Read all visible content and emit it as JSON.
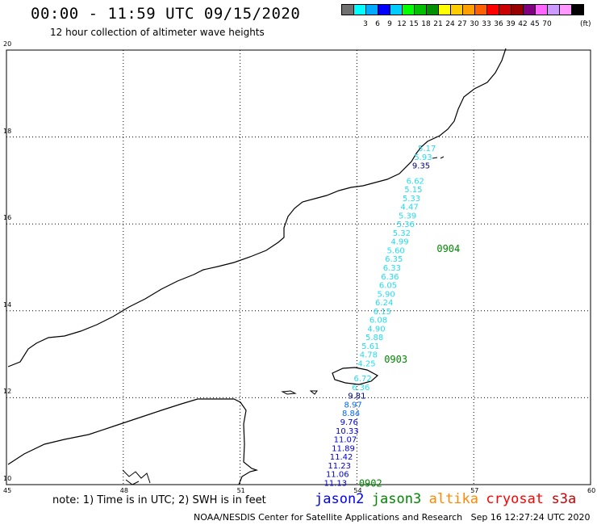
{
  "header": {
    "title": "00:00 - 11:59 UTC 09/15/2020",
    "subtitle": "12 hour collection of altimeter wave heights"
  },
  "legend": {
    "unit": "(ft)",
    "colors": [
      "#707070",
      "#00ffff",
      "#00aaff",
      "#0000ff",
      "#00ccff",
      "#00ff00",
      "#00c000",
      "#009000",
      "#ffff00",
      "#ffcc00",
      "#ffa000",
      "#ff6000",
      "#ff0000",
      "#cc0000",
      "#990000",
      "#800080",
      "#ff66ff",
      "#cc99ff",
      "#ff99ff",
      "#000000"
    ],
    "labels": [
      "3",
      "6",
      "9",
      "12",
      "15",
      "18",
      "21",
      "24",
      "27",
      "30",
      "33",
      "36",
      "39",
      "42",
      "45",
      "70"
    ]
  },
  "axes": {
    "x_ticks": [
      "45",
      "48",
      "51",
      "54",
      "57",
      "60"
    ],
    "y_ticks": [
      "20",
      "18",
      "16",
      "14",
      "12",
      "10"
    ],
    "lon_range": [
      45,
      60
    ],
    "lat_range": [
      10,
      20
    ]
  },
  "track": {
    "points": [
      {
        "lat": 17.75,
        "lon": 55.8,
        "v": "5.17",
        "c": "#22ddee"
      },
      {
        "lat": 17.55,
        "lon": 55.7,
        "v": "5.93",
        "c": "#22ddee"
      },
      {
        "lat": 17.35,
        "lon": 55.65,
        "v": "9.35",
        "c": "#000080"
      },
      {
        "lat": 17.0,
        "lon": 55.5,
        "v": "6.62",
        "c": "#22ddee"
      },
      {
        "lat": 16.8,
        "lon": 55.45,
        "v": "5.15",
        "c": "#22ddee"
      },
      {
        "lat": 16.6,
        "lon": 55.4,
        "v": "5.33",
        "c": "#22ddee"
      },
      {
        "lat": 16.4,
        "lon": 55.35,
        "v": "4.47",
        "c": "#22ddee"
      },
      {
        "lat": 16.2,
        "lon": 55.3,
        "v": "5.39",
        "c": "#22ddee"
      },
      {
        "lat": 16.0,
        "lon": 55.25,
        "v": "5.36",
        "c": "#22ddee"
      },
      {
        "lat": 15.8,
        "lon": 55.15,
        "v": "5.32",
        "c": "#22ddee"
      },
      {
        "lat": 15.6,
        "lon": 55.1,
        "v": "4.99",
        "c": "#22ddee"
      },
      {
        "lat": 15.4,
        "lon": 55.0,
        "v": "5.60",
        "c": "#22ddee"
      },
      {
        "lat": 15.2,
        "lon": 54.95,
        "v": "6.35",
        "c": "#22ddee"
      },
      {
        "lat": 15.0,
        "lon": 54.9,
        "v": "6.33",
        "c": "#22ddee"
      },
      {
        "lat": 14.8,
        "lon": 54.85,
        "v": "6.36",
        "c": "#22ddee"
      },
      {
        "lat": 14.6,
        "lon": 54.8,
        "v": "6.05",
        "c": "#22ddee"
      },
      {
        "lat": 14.4,
        "lon": 54.75,
        "v": "5.90",
        "c": "#22ddee"
      },
      {
        "lat": 14.2,
        "lon": 54.7,
        "v": "6.24",
        "c": "#22ddee"
      },
      {
        "lat": 14.0,
        "lon": 54.65,
        "v": "6.15",
        "c": "#22ddee"
      },
      {
        "lat": 13.8,
        "lon": 54.55,
        "v": "6.08",
        "c": "#22ddee"
      },
      {
        "lat": 13.6,
        "lon": 54.5,
        "v": "4.90",
        "c": "#22ddee"
      },
      {
        "lat": 13.4,
        "lon": 54.45,
        "v": "5.88",
        "c": "#22ddee"
      },
      {
        "lat": 13.2,
        "lon": 54.35,
        "v": "5.61",
        "c": "#22ddee"
      },
      {
        "lat": 13.0,
        "lon": 54.3,
        "v": "4.78",
        "c": "#22ddee"
      },
      {
        "lat": 12.8,
        "lon": 54.25,
        "v": "4.25",
        "c": "#22ddee"
      },
      {
        "lat": 12.45,
        "lon": 54.15,
        "v": "6.72",
        "c": "#22ddee"
      },
      {
        "lat": 12.25,
        "lon": 54.1,
        "v": "6.36",
        "c": "#22ddee"
      },
      {
        "lat": 12.05,
        "lon": 54.0,
        "v": "9.81",
        "c": "#000080"
      },
      {
        "lat": 11.85,
        "lon": 53.9,
        "v": "8.97",
        "c": "#0066ff"
      },
      {
        "lat": 11.65,
        "lon": 53.85,
        "v": "8.84",
        "c": "#0066ff"
      },
      {
        "lat": 11.45,
        "lon": 53.8,
        "v": "9.76",
        "c": "#0000dd"
      },
      {
        "lat": 11.25,
        "lon": 53.75,
        "v": "10.33",
        "c": "#0000dd"
      },
      {
        "lat": 11.05,
        "lon": 53.7,
        "v": "11.07",
        "c": "#0000dd"
      },
      {
        "lat": 10.85,
        "lon": 53.65,
        "v": "11.89",
        "c": "#0000dd"
      },
      {
        "lat": 10.65,
        "lon": 53.6,
        "v": "11.42",
        "c": "#0000dd"
      },
      {
        "lat": 10.45,
        "lon": 53.55,
        "v": "11.23",
        "c": "#0000dd"
      },
      {
        "lat": 10.25,
        "lon": 53.5,
        "v": "11.06",
        "c": "#0000dd"
      },
      {
        "lat": 10.05,
        "lon": 53.45,
        "v": "11.13",
        "c": "#0000dd"
      }
    ],
    "time_labels": [
      {
        "lat": 15.45,
        "lon": 56.35,
        "t": "0904"
      },
      {
        "lat": 12.9,
        "lon": 55.0,
        "t": "0903"
      },
      {
        "lat": 10.05,
        "lon": 54.35,
        "t": "0902"
      }
    ]
  },
  "footer": {
    "note": "note: 1) Time is in UTC; 2) SWH is in feet",
    "satellites": [
      {
        "name": "jason2",
        "color": "#0000ff"
      },
      {
        "name": "jason3",
        "color": "#008800"
      },
      {
        "name": "altika",
        "color": "#ff8800"
      },
      {
        "name": "cryosat",
        "color": "#ff0000"
      },
      {
        "name": "s3a",
        "color": "#cc0000"
      }
    ],
    "credit": "NOAA/NESDIS Center for Satellite Applications and Research   Sep 16 12:27:24 UTC 2020"
  }
}
